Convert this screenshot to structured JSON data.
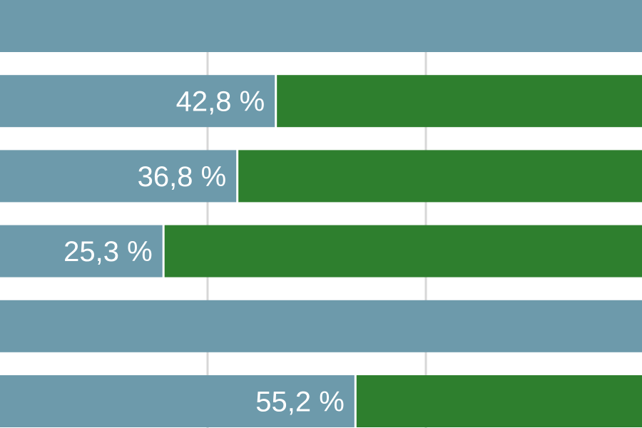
{
  "chart_data": {
    "type": "bar",
    "orientation": "horizontal",
    "stacked": true,
    "grid": true,
    "xlim": [
      0,
      100
    ],
    "series": [
      {
        "values": [
          100,
          42.8,
          36.8,
          25.3,
          100,
          55.2
        ],
        "labels": [
          "",
          "42,8 %",
          "36,8 %",
          "25,3 %",
          "",
          "55,2 %"
        ]
      },
      {
        "values": [
          0,
          57.2,
          63.2,
          74.7,
          0,
          44.8
        ]
      }
    ]
  },
  "colors": {
    "series_primary": "#6d9aab",
    "series_secondary": "#2e7f2e",
    "gridline": "#d7d7d7",
    "label_text": "#ffffff",
    "background": "#ffffff"
  }
}
